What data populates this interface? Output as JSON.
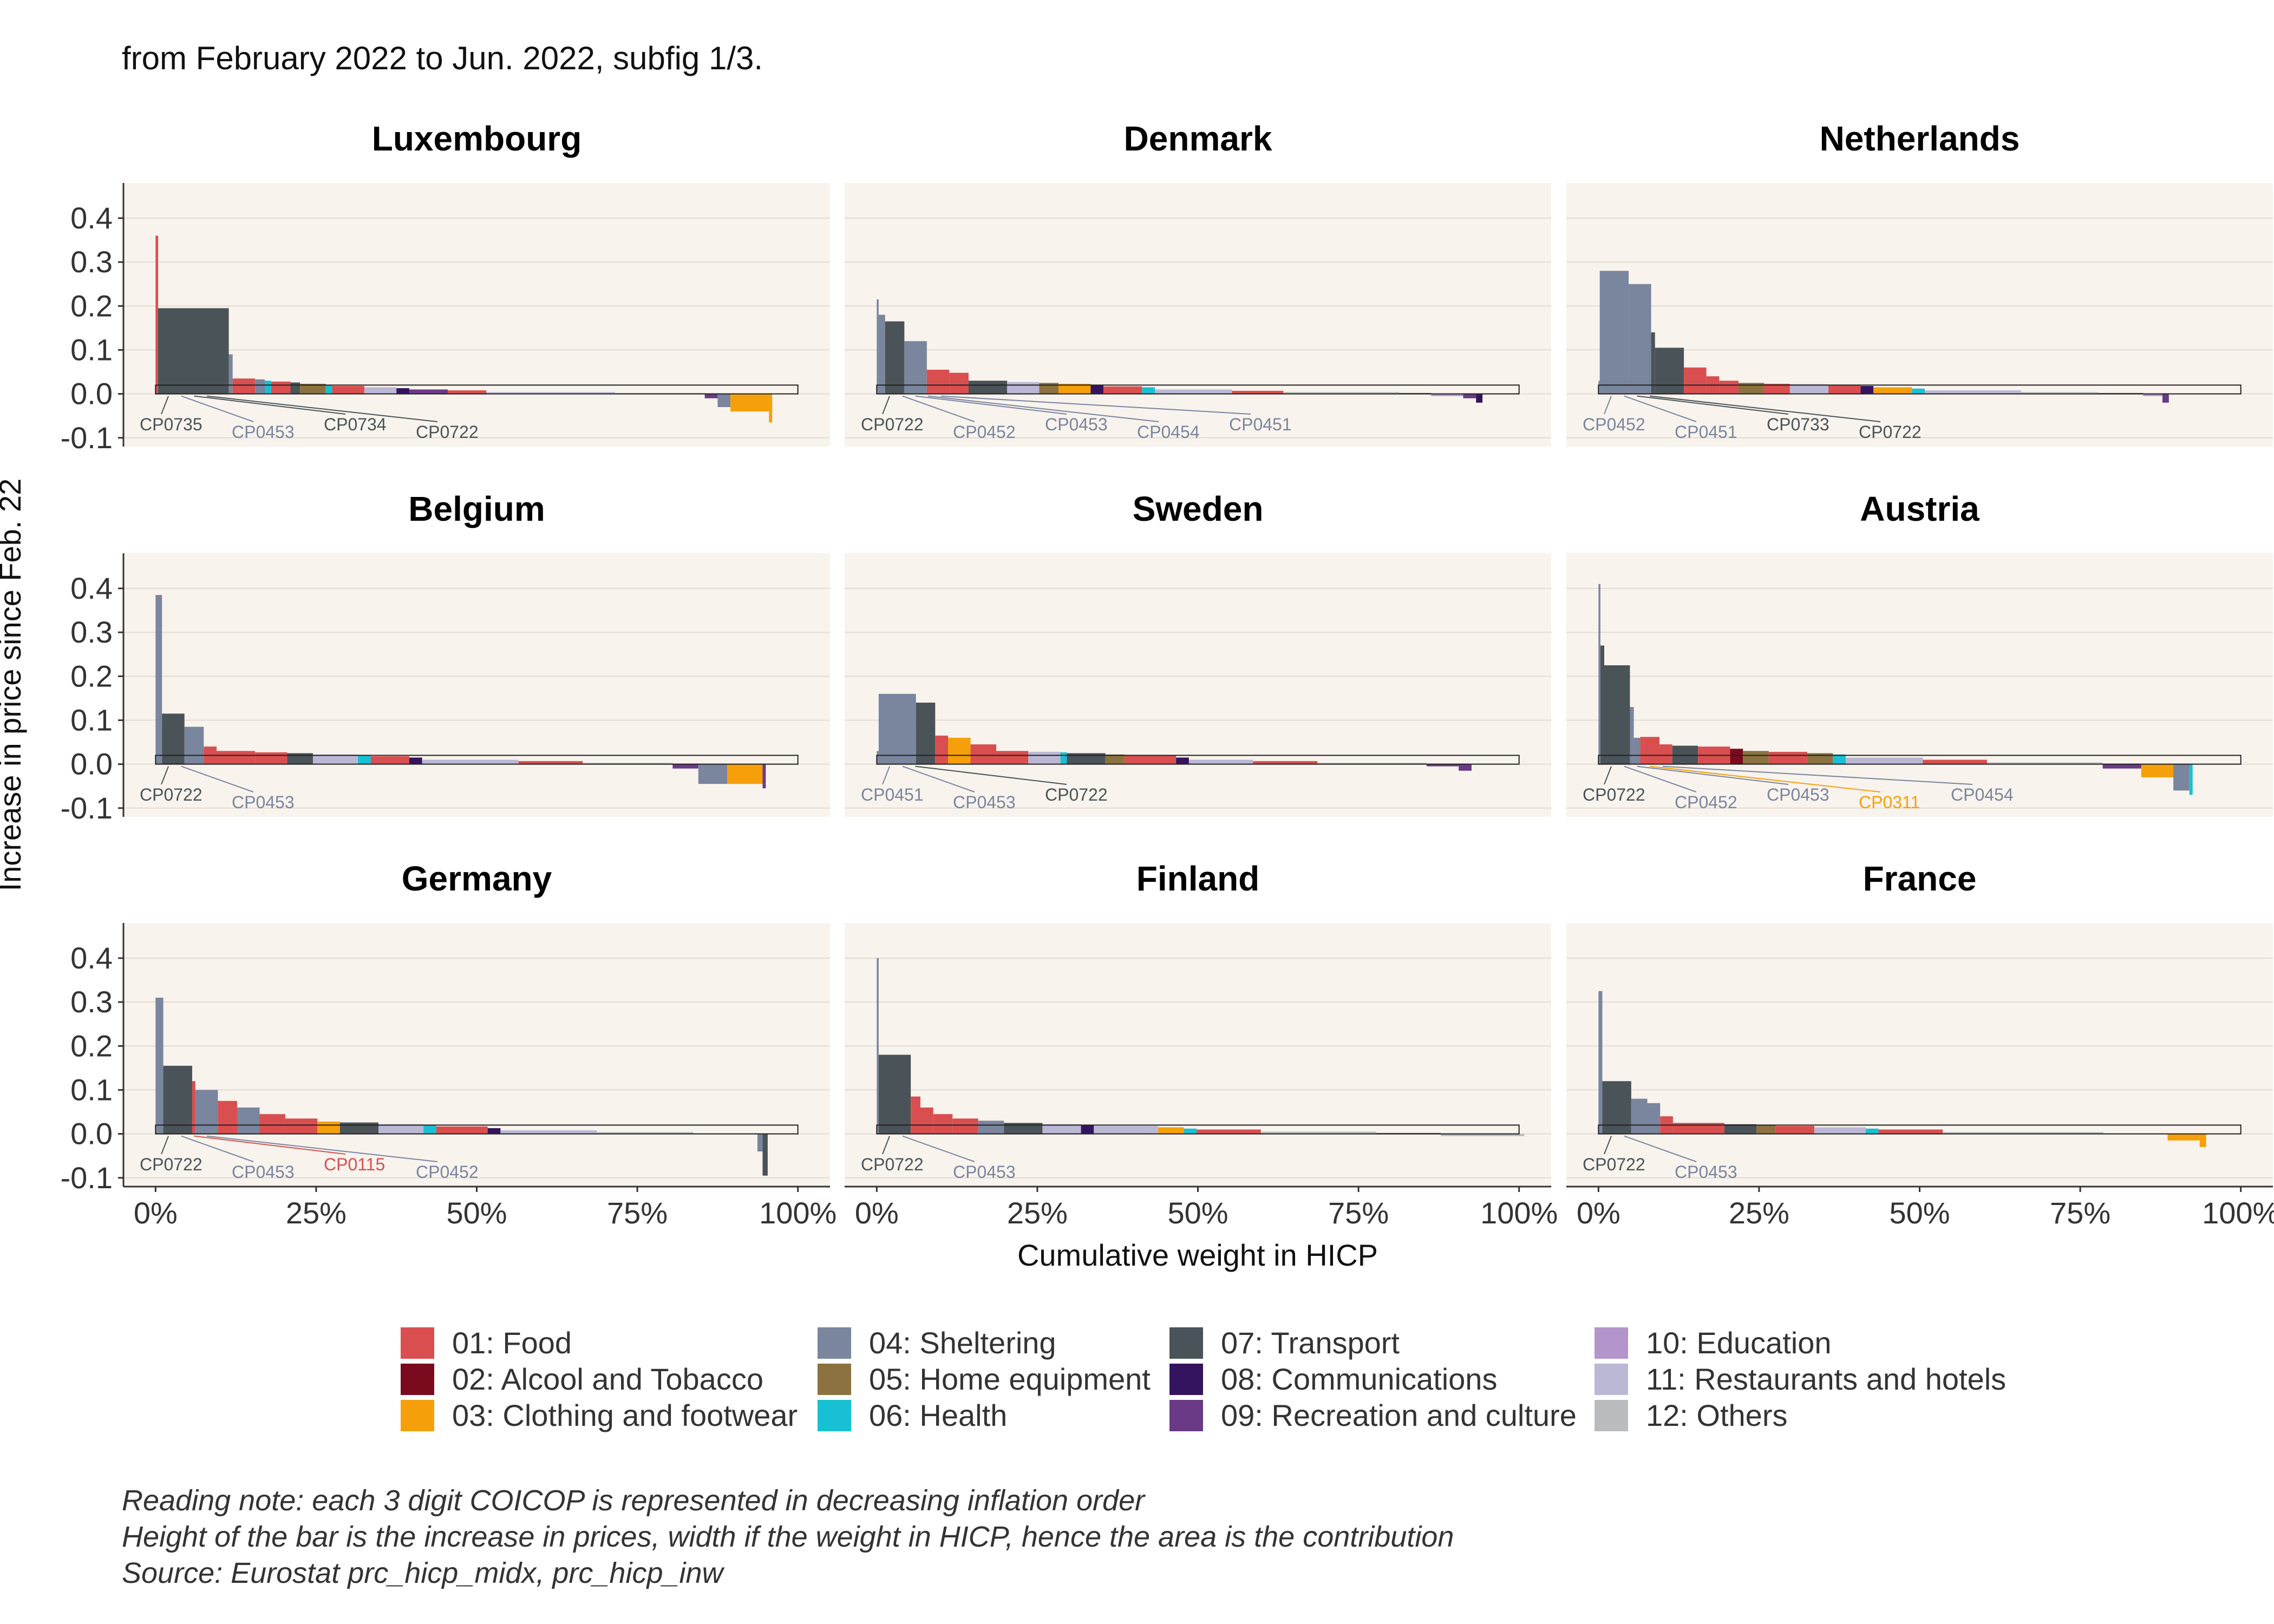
{
  "subtitle": "from February 2022 to Jun. 2022, subfig 1/3.",
  "notes": [
    "Reading note: each 3 digit COICOP is represented in decreasing inflation order",
    "Height of the bar is the increase in prices, width if the weight in HICP, hence the area is the contribution",
    "Source: Eurostat prc_hicp_midx, prc_hicp_inw"
  ],
  "legend": [
    {
      "label": "01: Food",
      "color": "#d94f4f"
    },
    {
      "label": "02: Alcool and Tobacco",
      "color": "#7a0a1e"
    },
    {
      "label": "03: Clothing and footwear",
      "color": "#f5a00a"
    },
    {
      "label": "04: Sheltering",
      "color": "#7a859e"
    },
    {
      "label": "05: Home equipment",
      "color": "#8c7240"
    },
    {
      "label": "06: Health",
      "color": "#17c1d3"
    },
    {
      "label": "07: Transport",
      "color": "#4a5358"
    },
    {
      "label": "08: Communications",
      "color": "#35145e"
    },
    {
      "label": "09: Recreation and culture",
      "color": "#6b3a87"
    },
    {
      "label": "10: Education",
      "color": "#b394cb"
    },
    {
      "label": "11: Restaurants and hotels",
      "color": "#bbb8d6"
    },
    {
      "label": "12: Others",
      "color": "#b9bbbd"
    }
  ],
  "chart_data": {
    "type": "bar",
    "ylabel": "Increase in price since Feb. 22",
    "xlabel": "Cumulative weight in HICP",
    "ylim": [
      -0.12,
      0.48
    ],
    "yticks": [
      -0.1,
      0.0,
      0.1,
      0.2,
      0.3,
      0.4
    ],
    "ytick_labels": [
      "-0.1",
      "0.0",
      "0.1",
      "0.2",
      "0.3",
      "0.4"
    ],
    "xlim": [
      -0.05,
      1.05
    ],
    "xticks": [
      0,
      0.25,
      0.5,
      0.75,
      1.0
    ],
    "xtick_labels": [
      "0%",
      "25%",
      "50%",
      "75%",
      "100%"
    ],
    "grid": true,
    "panels": [
      {
        "title": "Luxembourg",
        "bars": [
          [
            1,
            0.004,
            0.36
          ],
          [
            7,
            0.11,
            0.195
          ],
          [
            4,
            0.006,
            0.09
          ],
          [
            1,
            0.035,
            0.035
          ],
          [
            4,
            0.015,
            0.033
          ],
          [
            6,
            0.01,
            0.03
          ],
          [
            1,
            0.03,
            0.028
          ],
          [
            7,
            0.015,
            0.026
          ],
          [
            5,
            0.04,
            0.023
          ],
          [
            6,
            0.01,
            0.02
          ],
          [
            1,
            0.05,
            0.018
          ],
          [
            11,
            0.05,
            0.015
          ],
          [
            8,
            0.02,
            0.013
          ],
          [
            9,
            0.06,
            0.01
          ],
          [
            1,
            0.06,
            0.008
          ],
          [
            11,
            0.2,
            0.004
          ],
          [
            12,
            0.14,
            0.002
          ],
          [
            9,
            0.02,
            -0.01
          ],
          [
            4,
            0.02,
            -0.03
          ],
          [
            3,
            0.06,
            -0.04
          ],
          [
            3,
            0.005,
            -0.065
          ]
        ],
        "labels": [
          {
            "code": "CP0735",
            "cat": 7
          },
          {
            "code": "CP0453",
            "cat": 4
          },
          {
            "code": "CP0734",
            "cat": 7
          },
          {
            "code": "CP0722",
            "cat": 7
          }
        ]
      },
      {
        "title": "Denmark",
        "bars": [
          [
            4,
            0.003,
            0.215
          ],
          [
            4,
            0.01,
            0.18
          ],
          [
            7,
            0.03,
            0.165
          ],
          [
            4,
            0.035,
            0.12
          ],
          [
            1,
            0.035,
            0.055
          ],
          [
            1,
            0.03,
            0.048
          ],
          [
            7,
            0.06,
            0.03
          ],
          [
            11,
            0.05,
            0.027
          ],
          [
            5,
            0.03,
            0.025
          ],
          [
            3,
            0.05,
            0.023
          ],
          [
            8,
            0.02,
            0.02
          ],
          [
            1,
            0.06,
            0.017
          ],
          [
            6,
            0.02,
            0.015
          ],
          [
            11,
            0.12,
            0.01
          ],
          [
            1,
            0.08,
            0.007
          ],
          [
            12,
            0.18,
            0.004
          ],
          [
            9,
            0.05,
            0.002
          ],
          [
            10,
            0.05,
            -0.005
          ],
          [
            9,
            0.02,
            -0.01
          ],
          [
            8,
            0.01,
            -0.02
          ]
        ],
        "labels": [
          {
            "code": "CP0722",
            "cat": 7
          },
          {
            "code": "CP0452",
            "cat": 4
          },
          {
            "code": "CP0453",
            "cat": 4
          },
          {
            "code": "CP0454",
            "cat": 4
          },
          {
            "code": "CP0451",
            "cat": 4
          }
        ]
      },
      {
        "title": "Netherlands",
        "bars": [
          [
            4,
            0.002,
            0.03
          ],
          [
            4,
            0.045,
            0.28
          ],
          [
            4,
            0.035,
            0.25
          ],
          [
            7,
            0.006,
            0.14
          ],
          [
            7,
            0.045,
            0.105
          ],
          [
            1,
            0.035,
            0.06
          ],
          [
            1,
            0.02,
            0.04
          ],
          [
            1,
            0.03,
            0.03
          ],
          [
            5,
            0.04,
            0.025
          ],
          [
            1,
            0.04,
            0.023
          ],
          [
            11,
            0.06,
            0.022
          ],
          [
            1,
            0.05,
            0.02
          ],
          [
            8,
            0.02,
            0.018
          ],
          [
            3,
            0.06,
            0.015
          ],
          [
            6,
            0.02,
            0.012
          ],
          [
            11,
            0.15,
            0.008
          ],
          [
            12,
            0.12,
            0.004
          ],
          [
            9,
            0.07,
            0.002
          ],
          [
            10,
            0.03,
            -0.005
          ],
          [
            9,
            0.01,
            -0.02
          ]
        ],
        "labels": [
          {
            "code": "CP0452",
            "cat": 4
          },
          {
            "code": "CP0451",
            "cat": 4
          },
          {
            "code": "CP0733",
            "cat": 7
          },
          {
            "code": "CP0722",
            "cat": 7
          }
        ]
      },
      {
        "title": "Belgium",
        "bars": [
          [
            4,
            0.01,
            0.385
          ],
          [
            7,
            0.035,
            0.115
          ],
          [
            4,
            0.03,
            0.085
          ],
          [
            1,
            0.02,
            0.04
          ],
          [
            1,
            0.06,
            0.03
          ],
          [
            1,
            0.05,
            0.027
          ],
          [
            7,
            0.04,
            0.025
          ],
          [
            11,
            0.07,
            0.022
          ],
          [
            6,
            0.02,
            0.02
          ],
          [
            1,
            0.06,
            0.018
          ],
          [
            8,
            0.02,
            0.015
          ],
          [
            11,
            0.15,
            0.01
          ],
          [
            1,
            0.1,
            0.007
          ],
          [
            12,
            0.14,
            0.003
          ],
          [
            9,
            0.04,
            -0.01
          ],
          [
            4,
            0.045,
            -0.045
          ],
          [
            3,
            0.055,
            -0.045
          ],
          [
            9,
            0.005,
            -0.055
          ]
        ],
        "labels": [
          {
            "code": "CP0722",
            "cat": 7
          },
          {
            "code": "CP0453",
            "cat": 4
          }
        ]
      },
      {
        "title": "Sweden",
        "bars": [
          [
            4,
            0.003,
            0.03
          ],
          [
            4,
            0.058,
            0.16
          ],
          [
            7,
            0.03,
            0.14
          ],
          [
            1,
            0.02,
            0.065
          ],
          [
            3,
            0.035,
            0.06
          ],
          [
            1,
            0.04,
            0.045
          ],
          [
            1,
            0.05,
            0.03
          ],
          [
            11,
            0.05,
            0.028
          ],
          [
            6,
            0.01,
            0.027
          ],
          [
            7,
            0.06,
            0.025
          ],
          [
            5,
            0.03,
            0.022
          ],
          [
            1,
            0.08,
            0.02
          ],
          [
            8,
            0.02,
            0.015
          ],
          [
            11,
            0.1,
            0.01
          ],
          [
            1,
            0.1,
            0.007
          ],
          [
            12,
            0.17,
            0.003
          ],
          [
            9,
            0.05,
            -0.005
          ],
          [
            9,
            0.02,
            -0.015
          ]
        ],
        "labels": [
          {
            "code": "CP0451",
            "cat": 4
          },
          {
            "code": "CP0453",
            "cat": 4
          },
          {
            "code": "CP0722",
            "cat": 7
          }
        ]
      },
      {
        "title": "Austria",
        "bars": [
          [
            4,
            0.003,
            0.41
          ],
          [
            7,
            0.006,
            0.27
          ],
          [
            7,
            0.04,
            0.225
          ],
          [
            4,
            0.006,
            0.13
          ],
          [
            4,
            0.01,
            0.06
          ],
          [
            1,
            0.03,
            0.062
          ],
          [
            1,
            0.02,
            0.045
          ],
          [
            7,
            0.04,
            0.042
          ],
          [
            1,
            0.05,
            0.04
          ],
          [
            2,
            0.02,
            0.035
          ],
          [
            5,
            0.04,
            0.03
          ],
          [
            1,
            0.06,
            0.028
          ],
          [
            5,
            0.04,
            0.025
          ],
          [
            6,
            0.02,
            0.022
          ],
          [
            11,
            0.12,
            0.015
          ],
          [
            1,
            0.1,
            0.01
          ],
          [
            12,
            0.18,
            0.004
          ],
          [
            9,
            0.06,
            -0.01
          ],
          [
            3,
            0.05,
            -0.03
          ],
          [
            4,
            0.025,
            -0.06
          ],
          [
            6,
            0.005,
            -0.07
          ]
        ],
        "labels": [
          {
            "code": "CP0722",
            "cat": 7
          },
          {
            "code": "CP0452",
            "cat": 4
          },
          {
            "code": "CP0453",
            "cat": 4
          },
          {
            "code": "CP0311",
            "cat": 3
          },
          {
            "code": "CP0454",
            "cat": 4
          }
        ]
      },
      {
        "title": "Germany",
        "bars": [
          [
            4,
            0.012,
            0.31
          ],
          [
            7,
            0.045,
            0.155
          ],
          [
            1,
            0.005,
            0.12
          ],
          [
            4,
            0.035,
            0.1
          ],
          [
            1,
            0.03,
            0.075
          ],
          [
            4,
            0.035,
            0.06
          ],
          [
            1,
            0.04,
            0.045
          ],
          [
            1,
            0.05,
            0.035
          ],
          [
            3,
            0.035,
            0.028
          ],
          [
            7,
            0.06,
            0.026
          ],
          [
            11,
            0.07,
            0.022
          ],
          [
            6,
            0.02,
            0.02
          ],
          [
            1,
            0.08,
            0.017
          ],
          [
            8,
            0.02,
            0.013
          ],
          [
            11,
            0.15,
            0.008
          ],
          [
            12,
            0.15,
            0.004
          ],
          [
            9,
            0.1,
            0.001
          ],
          [
            4,
            0.008,
            -0.04
          ],
          [
            7,
            0.008,
            -0.095
          ]
        ],
        "labels": [
          {
            "code": "CP0722",
            "cat": 7
          },
          {
            "code": "CP0453",
            "cat": 4
          },
          {
            "code": "CP0115",
            "cat": 1
          },
          {
            "code": "CP0452",
            "cat": 4
          }
        ]
      },
      {
        "title": "Finland",
        "bars": [
          [
            4,
            0.003,
            0.4
          ],
          [
            7,
            0.05,
            0.18
          ],
          [
            1,
            0.015,
            0.085
          ],
          [
            1,
            0.02,
            0.06
          ],
          [
            1,
            0.03,
            0.045
          ],
          [
            1,
            0.04,
            0.035
          ],
          [
            4,
            0.04,
            0.03
          ],
          [
            7,
            0.06,
            0.025
          ],
          [
            11,
            0.06,
            0.022
          ],
          [
            8,
            0.02,
            0.02
          ],
          [
            11,
            0.1,
            0.018
          ],
          [
            3,
            0.04,
            0.015
          ],
          [
            6,
            0.02,
            0.012
          ],
          [
            1,
            0.1,
            0.01
          ],
          [
            12,
            0.18,
            0.005
          ],
          [
            9,
            0.1,
            0.002
          ],
          [
            12,
            0.13,
            -0.005
          ]
        ],
        "labels": [
          {
            "code": "CP0722",
            "cat": 7
          },
          {
            "code": "CP0453",
            "cat": 4
          }
        ]
      },
      {
        "title": "France",
        "bars": [
          [
            4,
            0.006,
            0.325
          ],
          [
            7,
            0.045,
            0.12
          ],
          [
            4,
            0.025,
            0.08
          ],
          [
            4,
            0.02,
            0.07
          ],
          [
            1,
            0.02,
            0.04
          ],
          [
            1,
            0.08,
            0.025
          ],
          [
            7,
            0.05,
            0.022
          ],
          [
            5,
            0.03,
            0.02
          ],
          [
            1,
            0.06,
            0.018
          ],
          [
            11,
            0.08,
            0.015
          ],
          [
            6,
            0.02,
            0.012
          ],
          [
            1,
            0.1,
            0.01
          ],
          [
            12,
            0.25,
            0.004
          ],
          [
            9,
            0.1,
            0.001
          ],
          [
            3,
            0.05,
            -0.015
          ],
          [
            3,
            0.01,
            -0.03
          ]
        ],
        "labels": [
          {
            "code": "CP0722",
            "cat": 7
          },
          {
            "code": "CP0453",
            "cat": 4
          }
        ]
      }
    ]
  }
}
